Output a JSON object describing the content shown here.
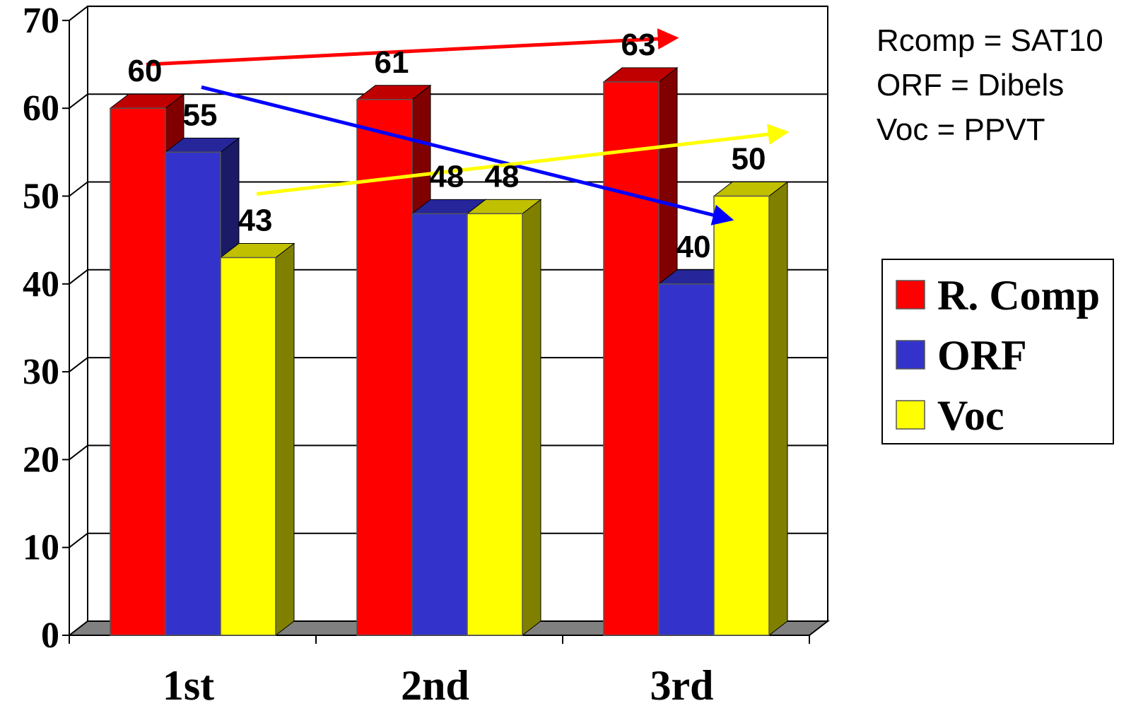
{
  "chart_data": {
    "type": "bar",
    "categories": [
      "1st",
      "2nd",
      "3rd"
    ],
    "series": [
      {
        "name": "R. Comp",
        "values": [
          60,
          61,
          63
        ],
        "color": "#ff0000",
        "side_color": "#800000",
        "top_color": "#c00000"
      },
      {
        "name": "ORF",
        "values": [
          55,
          48,
          40
        ],
        "color": "#3333cc",
        "side_color": "#1a1a66",
        "top_color": "#26269a"
      },
      {
        "name": "Voc",
        "values": [
          43,
          48,
          50
        ],
        "color": "#ffff00",
        "side_color": "#808000",
        "top_color": "#c0c000"
      }
    ],
    "ylim": [
      0,
      70
    ],
    "yticks": [
      "0",
      "10",
      "20",
      "30",
      "40",
      "50",
      "60",
      "70"
    ],
    "ytick_values": [
      0,
      10,
      20,
      30,
      40,
      50,
      60,
      70
    ],
    "data_labels": [
      [
        "60",
        "61",
        "63"
      ],
      [
        "55",
        "48",
        "40"
      ],
      [
        "43",
        "48",
        "50"
      ]
    ],
    "grid": true,
    "legend_position": "right",
    "trend_arrows": [
      {
        "series": "R. Comp",
        "color": "#ff0000"
      },
      {
        "series": "ORF",
        "color": "#0000ff"
      },
      {
        "series": "Voc",
        "color": "#ffff00"
      }
    ]
  },
  "notes": [
    "Rcomp = SAT10",
    "ORF = Dibels",
    "Voc = PPVT"
  ],
  "legend": [
    "R. Comp",
    "ORF",
    "Voc"
  ]
}
